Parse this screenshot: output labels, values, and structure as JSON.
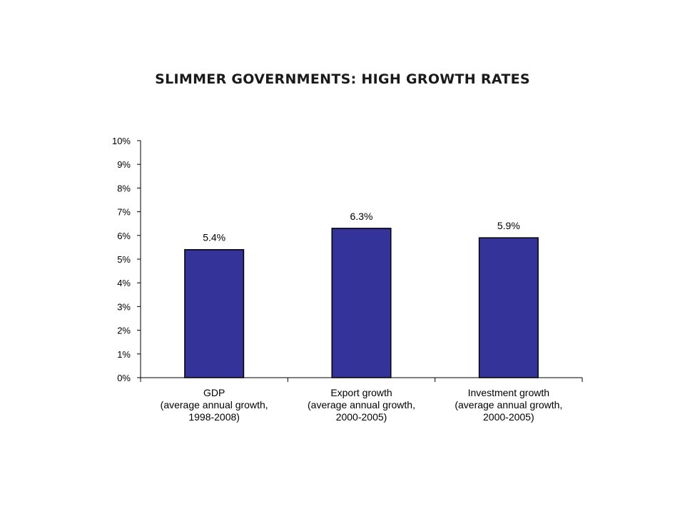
{
  "chart_data": {
    "type": "bar",
    "title": "SLIMMER GOVERNMENTS: HIGH GROWTH RATES",
    "xlabel": "",
    "ylabel": "",
    "categories": [
      [
        "GDP",
        "(average annual growth,",
        "1998-2008)"
      ],
      [
        "Export growth",
        "(average annual growth,",
        "2000-2005)"
      ],
      [
        "Investment growth",
        "(average annual growth,",
        "2000-2005)"
      ]
    ],
    "values": [
      5.4,
      6.3,
      5.9
    ],
    "data_labels": [
      "5.4%",
      "6.3%",
      "5.9%"
    ],
    "ylim": [
      0,
      10
    ],
    "yticks": [
      "0%",
      "1%",
      "2%",
      "3%",
      "4%",
      "5%",
      "6%",
      "7%",
      "8%",
      "9%",
      "10%"
    ],
    "grid": false,
    "legend": "none",
    "bar_color": "#333399"
  }
}
